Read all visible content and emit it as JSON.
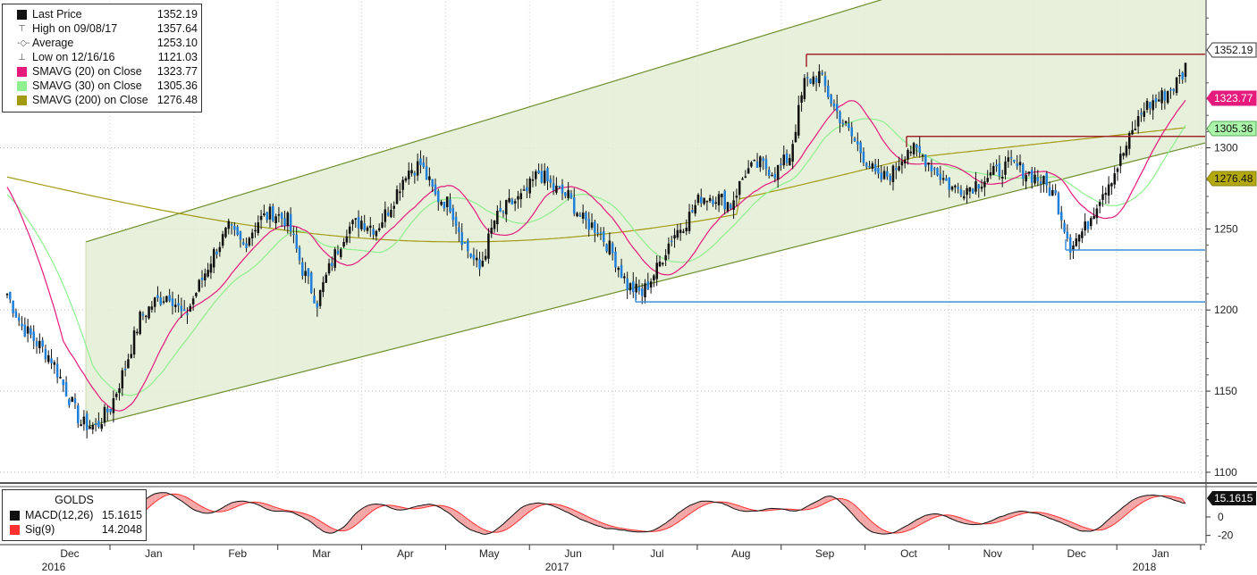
{
  "legend": {
    "rows": [
      {
        "name": "Last Price",
        "value": "1352.19",
        "icon": "black-square-icon",
        "color": "#111111"
      },
      {
        "name": "High on 09/08/17",
        "value": "1357.64",
        "icon": "high-marker-icon",
        "color": "#666666"
      },
      {
        "name": "Average",
        "value": "1253.10",
        "icon": "average-marker-icon",
        "color": "#666666"
      },
      {
        "name": "Low on 12/16/16",
        "value": "1121.03",
        "icon": "low-marker-icon",
        "color": "#666666"
      },
      {
        "name": "SMAVG (20) on Close",
        "value": "1323.77",
        "icon": "pink-square-icon",
        "color": "#e6197d"
      },
      {
        "name": "SMAVG (30) on Close",
        "value": "1305.36",
        "icon": "lightgreen-square-icon",
        "color": "#8ef08e"
      },
      {
        "name": "SMAVG (200) on Close",
        "value": "1276.48",
        "icon": "olive-square-icon",
        "color": "#a39a10"
      }
    ]
  },
  "macd_legend": {
    "title": "GOLDS",
    "rows": [
      {
        "name": "MACD(12,26)",
        "value": "15.1615",
        "color": "#111111"
      },
      {
        "name": "Sig(9)",
        "value": "14.2048",
        "color": "#ff3030"
      }
    ]
  },
  "price_tags": [
    {
      "label": "1352.19",
      "value": 1352.19,
      "bg": "#ffffff",
      "fg": "#111111",
      "border": "#333333"
    },
    {
      "label": "1323.77",
      "value": 1323.77,
      "bg": "#e6197d",
      "fg": "#ffffff",
      "border": "#e6197d"
    },
    {
      "label": "1305.36",
      "value": 1305.36,
      "bg": "#aaf5aa",
      "fg": "#111111",
      "border": "#55aa55"
    },
    {
      "label": "1276.48",
      "value": 1276.48,
      "bg": "#b3a80e",
      "fg": "#111111",
      "border": "#8a8209"
    }
  ],
  "macd_tag": {
    "label": "15.1615",
    "bg": "#111111",
    "fg": "#ffffff"
  },
  "chart_data": [
    {
      "type": "candlestick",
      "ylim": [
        1095,
        1390
      ],
      "y_ticks": [
        1100,
        1150,
        1200,
        1250,
        1300
      ],
      "x_months": [
        "Dec",
        "Jan",
        "Feb",
        "Mar",
        "Apr",
        "May",
        "Jun",
        "Jul",
        "Aug",
        "Sep",
        "Oct",
        "Nov",
        "Dec",
        "Jan"
      ],
      "x_years": [
        {
          "label": "2016",
          "month_index": 0
        },
        {
          "label": "2017",
          "month_index": 6
        },
        {
          "label": "2018",
          "month_index": 13
        }
      ],
      "weekly_close": [
        1210,
        1190,
        1180,
        1170,
        1150,
        1130,
        1128,
        1140,
        1165,
        1195,
        1205,
        1210,
        1195,
        1215,
        1235,
        1250,
        1240,
        1255,
        1260,
        1255,
        1225,
        1205,
        1230,
        1250,
        1255,
        1250,
        1265,
        1285,
        1290,
        1270,
        1265,
        1240,
        1225,
        1255,
        1265,
        1270,
        1285,
        1275,
        1270,
        1255,
        1250,
        1235,
        1215,
        1210,
        1225,
        1245,
        1255,
        1270,
        1270,
        1265,
        1285,
        1290,
        1285,
        1295,
        1340,
        1345,
        1325,
        1310,
        1295,
        1280,
        1285,
        1300,
        1295,
        1285,
        1275,
        1275,
        1280,
        1285,
        1290,
        1285,
        1280,
        1270,
        1240,
        1250,
        1270,
        1285,
        1305,
        1325,
        1330,
        1338,
        1350
      ],
      "series": [
        {
          "name": "SMAVG (20) on Close",
          "color": "#e6197d",
          "last": 1323.77
        },
        {
          "name": "SMAVG (30) on Close",
          "color": "#8ef08e",
          "last": 1305.36
        },
        {
          "name": "SMAVG (200) on Close",
          "color": "#a39a10",
          "last": 1276.48
        }
      ],
      "annotations": {
        "channel_upper": [
          [
            1128,
            1242
          ],
          [
            1128,
            1400
          ]
        ],
        "channel_lower": [
          [
            1128,
            1128
          ],
          [
            1303,
            1303
          ]
        ],
        "resistance_lines": [
          1357.64,
          1307
        ],
        "support_lines": [
          1237,
          1205
        ]
      }
    },
    {
      "type": "line",
      "name": "MACD",
      "ylim": [
        -30,
        30
      ],
      "y_ticks": [
        0,
        -20
      ],
      "series": [
        {
          "name": "MACD(12,26)",
          "color": "#111111",
          "last": 15.1615
        },
        {
          "name": "Sig(9)",
          "color": "#ff3030",
          "last": 14.2048
        }
      ]
    }
  ]
}
